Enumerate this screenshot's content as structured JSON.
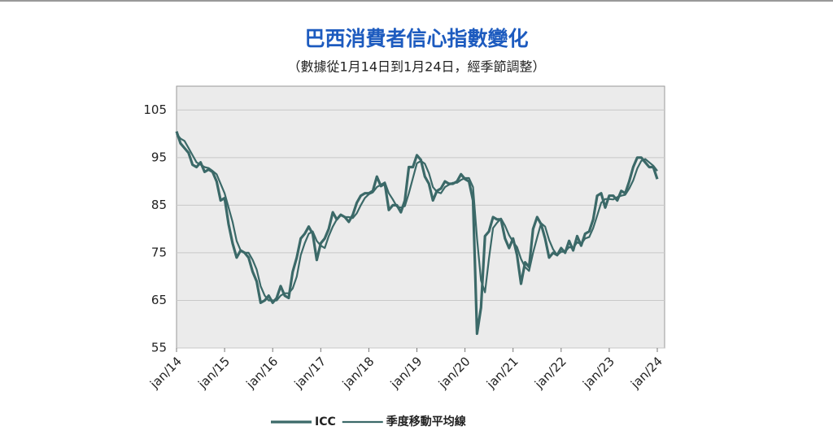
{
  "chart_data": {
    "type": "line",
    "title": "巴西消費者信心指數變化",
    "subtitle": "（數據從1月14日到1月24日，經季節調整）",
    "categories": [
      "jan/14",
      null,
      null,
      null,
      null,
      null,
      null,
      null,
      null,
      null,
      null,
      null,
      "jan/15",
      null,
      null,
      null,
      null,
      null,
      null,
      null,
      null,
      null,
      null,
      null,
      "jan/16",
      null,
      null,
      null,
      null,
      null,
      null,
      null,
      null,
      null,
      null,
      null,
      "jan/17",
      null,
      null,
      null,
      null,
      null,
      null,
      null,
      null,
      null,
      null,
      null,
      "jan/18",
      null,
      null,
      null,
      null,
      null,
      null,
      null,
      null,
      null,
      null,
      null,
      "jan/19",
      null,
      null,
      null,
      null,
      null,
      null,
      null,
      null,
      null,
      null,
      null,
      "jan/20",
      null,
      null,
      null,
      null,
      null,
      null,
      null,
      null,
      null,
      null,
      null,
      "jan/21",
      null,
      null,
      null,
      null,
      null,
      null,
      null,
      null,
      null,
      null,
      null,
      "jan/22",
      null,
      null,
      null,
      null,
      null,
      null,
      null,
      null,
      null,
      null,
      null,
      "jan/23",
      null,
      null,
      null,
      null,
      null,
      null,
      null,
      null,
      null,
      null,
      null,
      "jan/24"
    ],
    "series": [
      {
        "name": "ICC",
        "color": "#3b6968",
        "width": 3.2,
        "values": [
          100.5,
          98,
          97,
          96,
          93.5,
          93,
          94,
          92,
          92.5,
          92,
          90,
          86,
          86.5,
          81,
          77,
          74,
          75.5,
          75,
          74,
          71,
          69,
          64.5,
          65,
          66,
          64.5,
          65.5,
          68,
          66,
          65.5,
          71,
          74,
          78,
          79,
          80.5,
          79,
          73.5,
          77,
          78,
          80,
          83.5,
          82,
          83,
          82.5,
          81.5,
          83,
          85.5,
          87,
          87.5,
          87.5,
          88,
          91,
          89,
          89.5,
          84,
          85,
          85,
          83.5,
          86,
          93,
          93,
          95.5,
          94.5,
          91,
          89.5,
          86,
          88,
          88.5,
          90,
          89.5,
          89.5,
          90,
          91.5,
          90.5,
          90,
          86,
          58,
          63.5,
          78.5,
          79.5,
          82.5,
          82,
          82,
          78,
          76,
          78,
          74.5,
          68.5,
          73,
          72,
          80,
          82.5,
          81,
          78,
          74,
          75,
          74.5,
          76,
          75,
          77.5,
          75.5,
          78.5,
          76.5,
          79,
          79.5,
          82,
          87,
          87.5,
          84.5,
          87,
          87,
          86,
          88,
          87.5,
          90,
          93,
          95,
          95,
          94,
          93,
          93,
          90.5
        ]
      },
      {
        "name": "季度移動平均線",
        "color": "#3b6968",
        "width": 2.2,
        "values": [
          100,
          99,
          98.5,
          97,
          95.5,
          94,
          93.5,
          93,
          92.8,
          92.2,
          91.5,
          89.5,
          87.5,
          84.5,
          81.5,
          77.5,
          75.5,
          75,
          75,
          73.5,
          71.5,
          68,
          66,
          65,
          65,
          65,
          66,
          66.5,
          66.5,
          67.5,
          70,
          74.5,
          77,
          79,
          79.5,
          77.5,
          76.5,
          76,
          78.5,
          80.5,
          82,
          83,
          82.5,
          82.5,
          82.3,
          83.3,
          85,
          86.5,
          87.3,
          87.7,
          88.8,
          89.3,
          89.8,
          87.5,
          86.2,
          84.7,
          84.5,
          84.8,
          87.5,
          90.7,
          93.8,
          94.3,
          93.7,
          91.7,
          88.8,
          87.8,
          87.5,
          88.8,
          89.3,
          89.7,
          89.7,
          90.3,
          90.7,
          90.7,
          88.8,
          78,
          69.2,
          66.7,
          73.8,
          80.2,
          81.3,
          82.2,
          80.7,
          78.7,
          77.3,
          76.2,
          73.7,
          72,
          71.2,
          75,
          78.2,
          81.2,
          80.5,
          77.7,
          75.7,
          74.5,
          75.2,
          75.2,
          76.2,
          76,
          77.2,
          76.8,
          78,
          78.3,
          80.2,
          82.8,
          85.5,
          86.3,
          86.3,
          86.2,
          86.7,
          87,
          87.2,
          88.5,
          90.2,
          92.7,
          94.3,
          94.7,
          94,
          93.3,
          92.2
        ]
      }
    ],
    "ylim": [
      55,
      110
    ],
    "yticks": [
      55,
      65,
      75,
      85,
      95,
      105
    ],
    "grid": true
  }
}
